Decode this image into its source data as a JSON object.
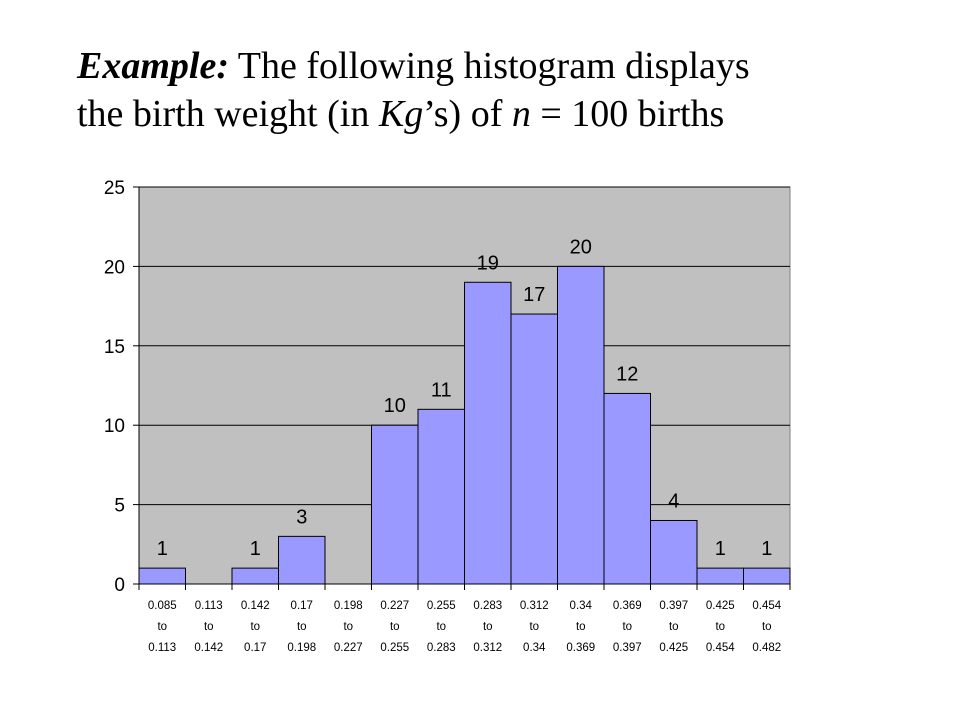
{
  "heading": {
    "label": "Example:",
    "line1": " The following histogram displays",
    "line2_a": "the birth weight (in ",
    "line2_kg": "Kg",
    "line2_b": "’s) of ",
    "line2_n": "n",
    "line2_c": " = 100 births"
  },
  "chart_data": {
    "type": "bar",
    "title": "",
    "xlabel": "",
    "ylabel": "",
    "ylim": [
      0,
      25
    ],
    "yticks": [
      0,
      5,
      10,
      15,
      20,
      25
    ],
    "grid": true,
    "legend": "none",
    "categories": [
      [
        "0.085",
        "to",
        "0.113"
      ],
      [
        "0.113",
        "to",
        "0.142"
      ],
      [
        "0.142",
        "to",
        "0.17"
      ],
      [
        "0.17",
        "to",
        "0.198"
      ],
      [
        "0.198",
        "to",
        "0.227"
      ],
      [
        "0.227",
        "to",
        "0.255"
      ],
      [
        "0.255",
        "to",
        "0.283"
      ],
      [
        "0.283",
        "to",
        "0.312"
      ],
      [
        "0.312",
        "to",
        "0.34"
      ],
      [
        "0.34",
        "to",
        "0.369"
      ],
      [
        "0.369",
        "to",
        "0.397"
      ],
      [
        "0.397",
        "to",
        "0.425"
      ],
      [
        "0.425",
        "to",
        "0.454"
      ],
      [
        "0.454",
        "to",
        "0.482"
      ]
    ],
    "values": [
      1,
      0,
      1,
      3,
      0,
      10,
      11,
      19,
      17,
      20,
      12,
      4,
      1,
      1
    ],
    "colors": {
      "bar_fill": "#9999ff",
      "bar_stroke": "#000000",
      "plot_bg": "#c0c0c0",
      "grid": "#000000"
    }
  }
}
